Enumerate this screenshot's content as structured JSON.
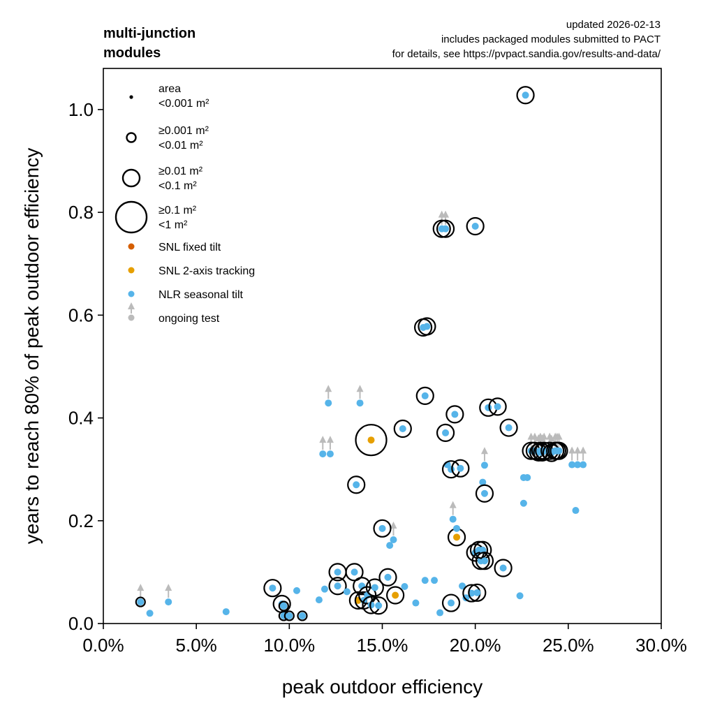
{
  "chart_data": {
    "type": "scatter",
    "title": "multi-junction\nmodules",
    "annotation": [
      "updated 2026-02-13",
      "includes packaged modules submitted to PACT",
      "for details, see https://pvpact.sandia.gov/results-and-data/"
    ],
    "xlabel": "peak outdoor efficiency",
    "ylabel": "years to reach 80% of peak outdoor efficiency",
    "xlim": [
      0,
      0.3
    ],
    "ylim": [
      0,
      1.08
    ],
    "xticks": [
      0,
      0.05,
      0.1,
      0.15,
      0.2,
      0.25,
      0.3
    ],
    "xtick_labels": [
      "0.0%",
      "5.0%",
      "10.0%",
      "15.0%",
      "20.0%",
      "25.0%",
      "30.0%"
    ],
    "yticks": [
      0,
      0.2,
      0.4,
      0.6,
      0.8,
      1.0
    ],
    "ytick_labels": [
      "0.0",
      "0.2",
      "0.4",
      "0.6",
      "0.8",
      "1.0"
    ],
    "grid": false,
    "legend_position": "top-left",
    "legend": {
      "size_title": "area",
      "sizes": [
        {
          "label": "<0.001 m²",
          "ring": "none"
        },
        {
          "label": "≥0.001 m²\n<0.01 m²",
          "ring": "small"
        },
        {
          "label": "≥0.01 m²\n<0.1 m²",
          "ring": "medium"
        },
        {
          "label": "≥0.1 m²\n<1 m²",
          "ring": "large"
        }
      ],
      "sources": [
        {
          "label": "SNL fixed tilt",
          "color": "#d55e00"
        },
        {
          "label": "SNL 2-axis tracking",
          "color": "#e69f00"
        },
        {
          "label": "NLR seasonal tilt",
          "color": "#56b4e9"
        }
      ],
      "ongoing": {
        "label": "ongoing test",
        "color": "#bbbbbb"
      }
    },
    "series": [
      {
        "name": "SNL 2-axis tracking",
        "color": "#e69f00",
        "points": [
          {
            "x": 0.144,
            "y": 0.357,
            "ring": "large"
          },
          {
            "x": 0.137,
            "y": 0.045,
            "ring": "medium"
          },
          {
            "x": 0.157,
            "y": 0.055,
            "ring": "medium"
          },
          {
            "x": 0.19,
            "y": 0.168,
            "ring": "medium"
          }
        ]
      },
      {
        "name": "NLR seasonal tilt",
        "color": "#56b4e9",
        "points": [
          {
            "x": 0.02,
            "y": 0.042,
            "ring": "small",
            "ongoing": true
          },
          {
            "x": 0.025,
            "y": 0.02,
            "ring": "none"
          },
          {
            "x": 0.035,
            "y": 0.042,
            "ring": "none",
            "ongoing": true
          },
          {
            "x": 0.066,
            "y": 0.023,
            "ring": "none"
          },
          {
            "x": 0.091,
            "y": 0.069,
            "ring": "medium"
          },
          {
            "x": 0.096,
            "y": 0.038,
            "ring": "medium"
          },
          {
            "x": 0.097,
            "y": 0.034,
            "ring": "small"
          },
          {
            "x": 0.097,
            "y": 0.015,
            "ring": "small"
          },
          {
            "x": 0.1,
            "y": 0.015,
            "ring": "small"
          },
          {
            "x": 0.104,
            "y": 0.064,
            "ring": "none"
          },
          {
            "x": 0.107,
            "y": 0.015,
            "ring": "small"
          },
          {
            "x": 0.116,
            "y": 0.046,
            "ring": "none"
          },
          {
            "x": 0.118,
            "y": 0.33,
            "ring": "none",
            "ongoing": true
          },
          {
            "x": 0.119,
            "y": 0.067,
            "ring": "none"
          },
          {
            "x": 0.121,
            "y": 0.429,
            "ring": "none",
            "ongoing": true
          },
          {
            "x": 0.122,
            "y": 0.33,
            "ring": "none",
            "ongoing": true
          },
          {
            "x": 0.126,
            "y": 0.073,
            "ring": "medium"
          },
          {
            "x": 0.126,
            "y": 0.1,
            "ring": "medium"
          },
          {
            "x": 0.131,
            "y": 0.062,
            "ring": "none"
          },
          {
            "x": 0.135,
            "y": 0.1,
            "ring": "medium"
          },
          {
            "x": 0.136,
            "y": 0.27,
            "ring": "medium"
          },
          {
            "x": 0.138,
            "y": 0.429,
            "ring": "none",
            "ongoing": true
          },
          {
            "x": 0.139,
            "y": 0.073,
            "ring": "medium"
          },
          {
            "x": 0.14,
            "y": 0.045,
            "ring": "medium"
          },
          {
            "x": 0.142,
            "y": 0.055,
            "ring": "medium"
          },
          {
            "x": 0.144,
            "y": 0.036,
            "ring": "medium"
          },
          {
            "x": 0.146,
            "y": 0.07,
            "ring": "medium"
          },
          {
            "x": 0.148,
            "y": 0.035,
            "ring": "medium"
          },
          {
            "x": 0.15,
            "y": 0.185,
            "ring": "medium"
          },
          {
            "x": 0.153,
            "y": 0.09,
            "ring": "medium"
          },
          {
            "x": 0.154,
            "y": 0.152,
            "ring": "none"
          },
          {
            "x": 0.156,
            "y": 0.163,
            "ring": "none",
            "ongoing": true
          },
          {
            "x": 0.161,
            "y": 0.379,
            "ring": "medium"
          },
          {
            "x": 0.162,
            "y": 0.072,
            "ring": "none"
          },
          {
            "x": 0.168,
            "y": 0.04,
            "ring": "none"
          },
          {
            "x": 0.172,
            "y": 0.576,
            "ring": "medium"
          },
          {
            "x": 0.173,
            "y": 0.443,
            "ring": "medium"
          },
          {
            "x": 0.173,
            "y": 0.084,
            "ring": "none"
          },
          {
            "x": 0.174,
            "y": 0.578,
            "ring": "medium"
          },
          {
            "x": 0.178,
            "y": 0.084,
            "ring": "none"
          },
          {
            "x": 0.181,
            "y": 0.021,
            "ring": "none"
          },
          {
            "x": 0.182,
            "y": 0.768,
            "ring": "medium",
            "ongoing": true
          },
          {
            "x": 0.184,
            "y": 0.768,
            "ring": "medium",
            "ongoing": true
          },
          {
            "x": 0.184,
            "y": 0.371,
            "ring": "medium"
          },
          {
            "x": 0.185,
            "y": 0.309,
            "ring": "none"
          },
          {
            "x": 0.187,
            "y": 0.3,
            "ring": "medium"
          },
          {
            "x": 0.187,
            "y": 0.04,
            "ring": "medium"
          },
          {
            "x": 0.188,
            "y": 0.203,
            "ring": "none",
            "ongoing": true
          },
          {
            "x": 0.189,
            "y": 0.407,
            "ring": "medium"
          },
          {
            "x": 0.19,
            "y": 0.185,
            "ring": "none"
          },
          {
            "x": 0.192,
            "y": 0.302,
            "ring": "medium"
          },
          {
            "x": 0.193,
            "y": 0.073,
            "ring": "none"
          },
          {
            "x": 0.195,
            "y": 0.05,
            "ring": "none"
          },
          {
            "x": 0.198,
            "y": 0.059,
            "ring": "medium"
          },
          {
            "x": 0.2,
            "y": 0.773,
            "ring": "medium"
          },
          {
            "x": 0.2,
            "y": 0.138,
            "ring": "medium"
          },
          {
            "x": 0.201,
            "y": 0.06,
            "ring": "medium"
          },
          {
            "x": 0.202,
            "y": 0.143,
            "ring": "medium"
          },
          {
            "x": 0.203,
            "y": 0.122,
            "ring": "medium"
          },
          {
            "x": 0.204,
            "y": 0.143,
            "ring": "medium"
          },
          {
            "x": 0.204,
            "y": 0.275,
            "ring": "none"
          },
          {
            "x": 0.205,
            "y": 0.253,
            "ring": "medium"
          },
          {
            "x": 0.205,
            "y": 0.122,
            "ring": "medium"
          },
          {
            "x": 0.205,
            "y": 0.308,
            "ring": "none",
            "ongoing": true
          },
          {
            "x": 0.207,
            "y": 0.42,
            "ring": "medium"
          },
          {
            "x": 0.212,
            "y": 0.422,
            "ring": "medium"
          },
          {
            "x": 0.215,
            "y": 0.108,
            "ring": "medium"
          },
          {
            "x": 0.218,
            "y": 0.381,
            "ring": "medium"
          },
          {
            "x": 0.224,
            "y": 0.054,
            "ring": "none"
          },
          {
            "x": 0.226,
            "y": 0.284,
            "ring": "none"
          },
          {
            "x": 0.226,
            "y": 0.234,
            "ring": "none"
          },
          {
            "x": 0.227,
            "y": 1.028,
            "ring": "medium"
          },
          {
            "x": 0.228,
            "y": 0.284,
            "ring": "none"
          },
          {
            "x": 0.23,
            "y": 0.336,
            "ring": "medium",
            "ongoing": true
          },
          {
            "x": 0.232,
            "y": 0.336,
            "ring": "medium",
            "ongoing": true
          },
          {
            "x": 0.234,
            "y": 0.333,
            "ring": "medium",
            "ongoing": true
          },
          {
            "x": 0.235,
            "y": 0.336,
            "ring": "medium",
            "ongoing": true
          },
          {
            "x": 0.236,
            "y": 0.333,
            "ring": "medium",
            "ongoing": true
          },
          {
            "x": 0.237,
            "y": 0.336,
            "ring": "medium",
            "ongoing": true
          },
          {
            "x": 0.24,
            "y": 0.336,
            "ring": "medium",
            "ongoing": true
          },
          {
            "x": 0.241,
            "y": 0.332,
            "ring": "medium",
            "ongoing": true
          },
          {
            "x": 0.243,
            "y": 0.336,
            "ring": "medium",
            "ongoing": true
          },
          {
            "x": 0.244,
            "y": 0.336,
            "ring": "medium",
            "ongoing": true
          },
          {
            "x": 0.245,
            "y": 0.336,
            "ring": "medium",
            "ongoing": true
          },
          {
            "x": 0.252,
            "y": 0.309,
            "ring": "none",
            "ongoing": true
          },
          {
            "x": 0.254,
            "y": 0.22,
            "ring": "none"
          },
          {
            "x": 0.255,
            "y": 0.309,
            "ring": "none",
            "ongoing": true
          },
          {
            "x": 0.258,
            "y": 0.309,
            "ring": "none",
            "ongoing": true
          }
        ]
      }
    ]
  }
}
